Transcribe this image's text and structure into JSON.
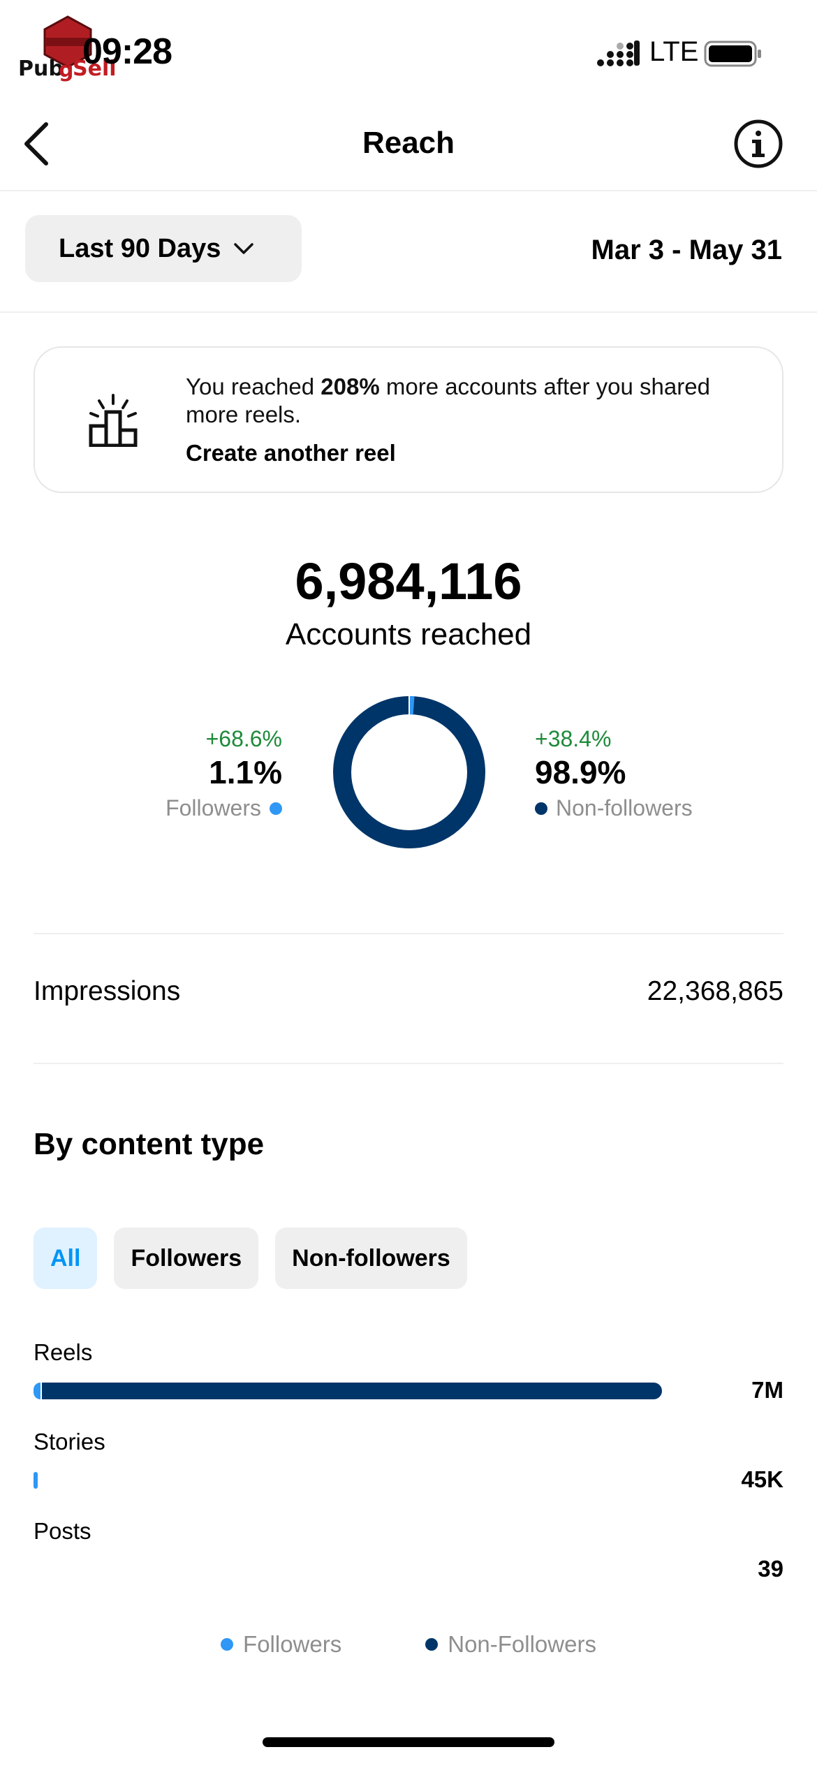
{
  "status_bar": {
    "time": "09:28",
    "network": "LTE",
    "watermark_text": "PubgSell",
    "watermark_badge": "INFINITY"
  },
  "nav": {
    "title": "Reach",
    "back_icon": "chevron-left-icon",
    "info_icon": "info-icon"
  },
  "filter_bar": {
    "range_label": "Last 90 Days",
    "date_range": "Mar 3 - May 31"
  },
  "tip": {
    "text_before": "You reached ",
    "text_bold": "208%",
    "text_after": " more accounts after you shared more reels.",
    "link": "Create another reel",
    "icon": "podium-icon"
  },
  "reach": {
    "value": "6,984,116",
    "label": "Accounts reached",
    "followers": {
      "change": "+68.6%",
      "percent": "1.1%",
      "label": "Followers",
      "share": 0.011
    },
    "non_followers": {
      "change": "+38.4%",
      "percent": "98.9%",
      "label": "Non-followers",
      "share": 0.989
    }
  },
  "impressions": {
    "label": "Impressions",
    "value": "22,368,865"
  },
  "content_type": {
    "title": "By content type",
    "filters": [
      "All",
      "Followers",
      "Non-followers"
    ],
    "active_filter": "All",
    "rows": [
      {
        "label": "Reels",
        "value": "7M",
        "total_fraction": 1.0,
        "followers_fraction": 0.011
      },
      {
        "label": "Stories",
        "value": "45K",
        "total_fraction": 0.0064,
        "followers_fraction": 1.0
      },
      {
        "label": "Posts",
        "value": "39",
        "total_fraction": 0.0,
        "followers_fraction": 0.0
      }
    ],
    "legend": [
      "Followers",
      "Non-Followers"
    ]
  },
  "colors": {
    "followers": "#2f97f5",
    "non_followers": "#003569",
    "positive": "#1e8a3a",
    "active_chip_bg": "#e0f1ff",
    "active_chip_text": "#0095f6"
  }
}
